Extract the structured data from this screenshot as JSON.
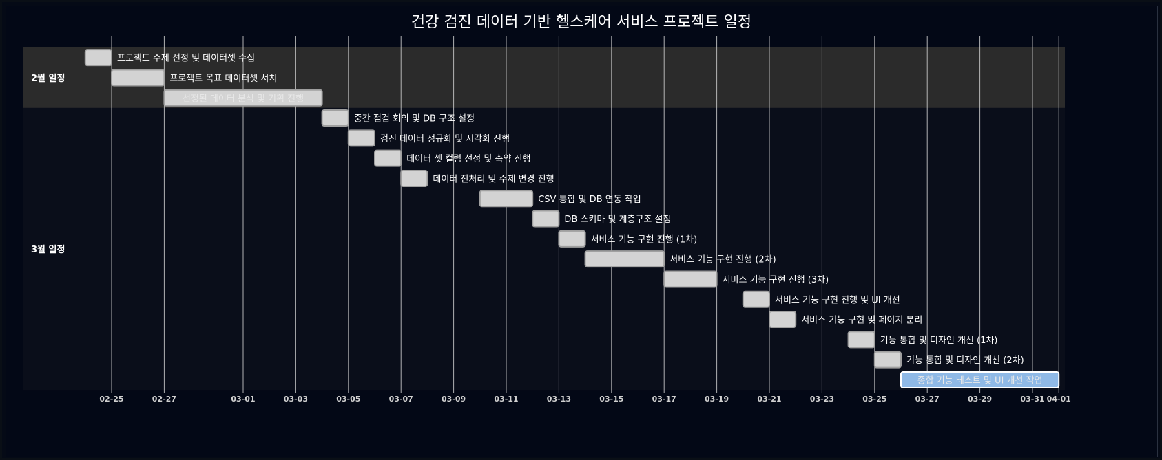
{
  "chart_data": {
    "type": "gantt",
    "title": "건강 검진 데이터 기반 헬스케어 서비스 프로젝트 일정",
    "x_axis": {
      "type": "date",
      "range": [
        "2024-02-23",
        "2024-04-02"
      ],
      "ticks": [
        "02-25",
        "02-27",
        "03-01",
        "03-03",
        "03-05",
        "03-07",
        "03-09",
        "03-11",
        "03-13",
        "03-15",
        "03-17",
        "03-19",
        "03-21",
        "03-23",
        "03-25",
        "03-27",
        "03-29",
        "03-31",
        "04-01"
      ],
      "grid": true
    },
    "sections": [
      {
        "name": "2월 일정",
        "row_start": 0,
        "row_end": 2
      },
      {
        "name": "3월 일정",
        "row_start": 3,
        "row_end": 16
      }
    ],
    "tasks": [
      {
        "label": "프로젝트 주제 선정 및 데이터셋 수집",
        "start": "2024-02-24",
        "end": "2024-02-25",
        "label_inside": false,
        "status": "normal"
      },
      {
        "label": "프로젝트 목표 데이터셋 서치",
        "start": "2024-02-25",
        "end": "2024-02-27",
        "label_inside": false,
        "status": "normal"
      },
      {
        "label": "선정된 데이터 분석 및 기획 진행",
        "start": "2024-02-27",
        "end": "2024-03-04",
        "label_inside": true,
        "status": "normal"
      },
      {
        "label": "중간 점검 회의 및 DB 구조 설정",
        "start": "2024-03-04",
        "end": "2024-03-05",
        "label_inside": false,
        "status": "normal"
      },
      {
        "label": "검진 데이터 정규화 및 시각화 진행",
        "start": "2024-03-05",
        "end": "2024-03-06",
        "label_inside": false,
        "status": "normal"
      },
      {
        "label": "데이터 셋 컬럼 선정 및 축약 진행",
        "start": "2024-03-06",
        "end": "2024-03-07",
        "label_inside": false,
        "status": "normal"
      },
      {
        "label": "데이터 전처리 및 주제 변경 진행",
        "start": "2024-03-07",
        "end": "2024-03-08",
        "label_inside": false,
        "status": "normal"
      },
      {
        "label": "CSV 통합 및 DB 연동 작업",
        "start": "2024-03-10",
        "end": "2024-03-12",
        "label_inside": false,
        "status": "normal"
      },
      {
        "label": "DB 스키마 및 계층구조 설정",
        "start": "2024-03-12",
        "end": "2024-03-13",
        "label_inside": false,
        "status": "normal"
      },
      {
        "label": "서비스 기능 구현 진행 (1차)",
        "start": "2024-03-13",
        "end": "2024-03-14",
        "label_inside": false,
        "status": "normal"
      },
      {
        "label": "서비스 기능 구현 진행 (2차)",
        "start": "2024-03-14",
        "end": "2024-03-17",
        "label_inside": false,
        "status": "normal"
      },
      {
        "label": "서비스 기능 구현 진행 (3차)",
        "start": "2024-03-17",
        "end": "2024-03-19",
        "label_inside": false,
        "status": "normal"
      },
      {
        "label": "서비스 기능 구현 진행 및 UI 개선",
        "start": "2024-03-20",
        "end": "2024-03-21",
        "label_inside": false,
        "status": "normal"
      },
      {
        "label": "서비스 기능 구현 및 페이지 분리",
        "start": "2024-03-21",
        "end": "2024-03-22",
        "label_inside": false,
        "status": "normal"
      },
      {
        "label": "기능 통합 및 디자인 개선 (1차)",
        "start": "2024-03-24",
        "end": "2024-03-25",
        "label_inside": false,
        "status": "normal"
      },
      {
        "label": "기능 통합 및 디자인 개선 (2차)",
        "start": "2024-03-25",
        "end": "2024-03-26",
        "label_inside": false,
        "status": "normal"
      },
      {
        "label": "종합 기능 테스트 및 UI 개선 작업",
        "start": "2024-03-26",
        "end": "2024-04-01",
        "label_inside": true,
        "status": "active"
      }
    ],
    "colors": {
      "background": "#030816",
      "section_even": "#2b2b2b",
      "section_odd": "#0a0e1a",
      "task_fill": "#d3d3d3",
      "task_stroke": "#a0a0a0",
      "active_fill": "#8fb9e6",
      "active_stroke": "#ffffff",
      "grid": "#cfcfcf",
      "text": "#ffffff"
    }
  }
}
